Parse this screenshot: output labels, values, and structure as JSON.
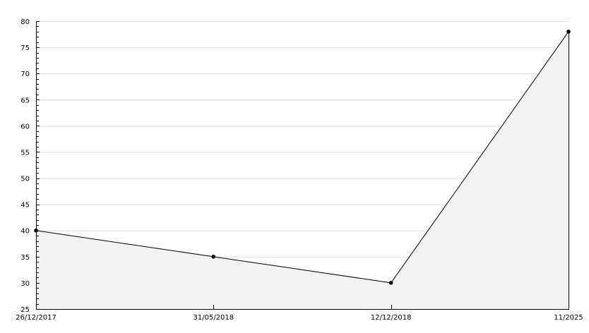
{
  "chart_data": {
    "type": "area",
    "categories": [
      "26/12/2017",
      "31/05/2018",
      "12/12/2018",
      "11/2025"
    ],
    "values": [
      40,
      35,
      30,
      78
    ],
    "ylim": [
      25,
      80
    ],
    "yticks": [
      "25",
      "30",
      "35",
      "40",
      "45",
      "50",
      "55",
      "60",
      "65",
      "70",
      "75",
      "80"
    ],
    "y_minor_step": 1,
    "grid": true,
    "line_color": "#000000",
    "fill_color": "#f2f2f2",
    "grid_color": "#dddddd",
    "marker": "filled-circle"
  }
}
